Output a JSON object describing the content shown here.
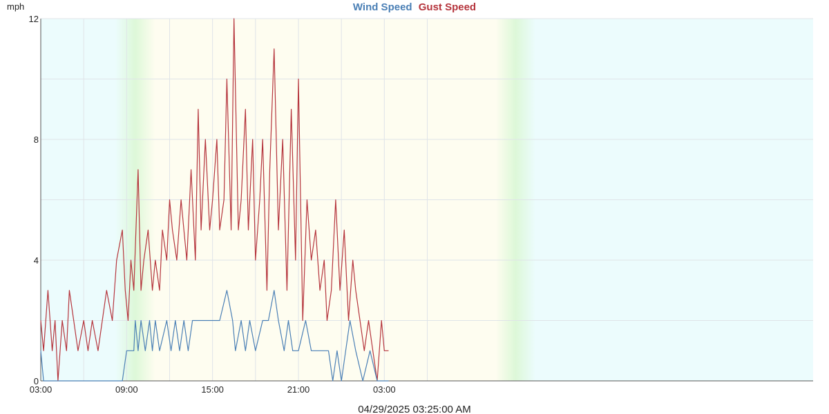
{
  "chart_data": {
    "type": "line",
    "y_unit": "mph",
    "ylim": [
      0,
      12
    ],
    "y_ticks": [
      "0",
      "4",
      "8",
      "12"
    ],
    "x_tick_labels": [
      "03:00",
      "09:00",
      "15:00",
      "21:00",
      "03:00"
    ],
    "x_range_hours": [
      3,
      30
    ],
    "grid": true,
    "legend_position": "top-center",
    "timestamp": "04/29/2025 03:25:00 AM",
    "colors": {
      "wind": "#4a7fb5",
      "gust": "#b5343c",
      "night": "#ecfcfd",
      "day": "#fefdf0",
      "twilight": "#ddf8d8"
    },
    "daylight": {
      "sunrise_hour": 6.3,
      "sunset_hour": 19.6
    },
    "series": [
      {
        "name": "Wind Speed",
        "x_hours": [
          3.0,
          3.2,
          8.7,
          9.0,
          9.5,
          9.6,
          9.8,
          10.0,
          10.3,
          10.6,
          10.8,
          11.0,
          11.3,
          11.8,
          12.1,
          12.4,
          12.7,
          13.0,
          13.3,
          13.6,
          14.0,
          14.5,
          15.0,
          15.5,
          16.0,
          16.4,
          16.6,
          17.0,
          17.3,
          17.6,
          18.0,
          18.5,
          18.9,
          19.3,
          19.6,
          20.0,
          20.3,
          20.6,
          21.0,
          21.5,
          21.9,
          22.5,
          23.1,
          23.4,
          23.7,
          24.0,
          24.3,
          24.6,
          25.0,
          25.5,
          26.0,
          26.5,
          27.0,
          27.3
        ],
        "values": [
          1,
          0,
          0,
          1,
          1,
          2,
          1,
          2,
          1,
          2,
          1,
          2,
          1,
          2,
          1,
          2,
          1,
          2,
          1,
          2,
          2,
          2,
          2,
          2,
          3,
          2,
          1,
          2,
          1,
          2,
          1,
          2,
          2,
          3,
          2,
          1,
          2,
          1,
          1,
          2,
          1,
          1,
          1,
          0,
          1,
          0,
          1,
          2,
          1,
          0,
          1,
          0,
          0,
          0
        ]
      },
      {
        "name": "Gust Speed",
        "x_hours": [
          3.0,
          3.2,
          3.5,
          3.8,
          4.0,
          4.2,
          4.5,
          4.8,
          5.0,
          5.3,
          5.6,
          6.0,
          6.3,
          6.6,
          7.0,
          7.3,
          7.6,
          8.0,
          8.3,
          8.7,
          8.9,
          9.1,
          9.3,
          9.5,
          9.8,
          10.0,
          10.2,
          10.5,
          10.8,
          11.0,
          11.3,
          11.5,
          11.8,
          12.0,
          12.2,
          12.5,
          12.8,
          13.0,
          13.2,
          13.5,
          13.8,
          14.0,
          14.2,
          14.5,
          14.8,
          15.0,
          15.3,
          15.5,
          15.8,
          16.0,
          16.3,
          16.5,
          16.8,
          17.0,
          17.3,
          17.5,
          17.8,
          18.0,
          18.3,
          18.5,
          18.8,
          19.0,
          19.3,
          19.6,
          19.9,
          20.2,
          20.5,
          20.8,
          21.0,
          21.3,
          21.6,
          21.9,
          22.2,
          22.5,
          22.8,
          23.0,
          23.3,
          23.6,
          23.9,
          24.2,
          24.5,
          24.8,
          25.0,
          25.3,
          25.6,
          25.9,
          26.2,
          26.5,
          26.8,
          27.0,
          27.3
        ],
        "values": [
          2,
          1,
          3,
          1,
          2,
          0,
          2,
          1,
          3,
          2,
          1,
          2,
          1,
          2,
          1,
          2,
          3,
          2,
          4,
          5,
          3,
          2,
          4,
          3,
          7,
          3,
          4,
          5,
          3,
          4,
          3,
          5,
          4,
          6,
          5,
          4,
          6,
          5,
          4,
          7,
          4,
          9,
          5,
          8,
          5,
          6,
          8,
          5,
          6,
          10,
          5,
          12,
          5,
          6,
          9,
          5,
          8,
          4,
          6,
          8,
          3,
          7,
          11,
          5,
          8,
          3,
          9,
          4,
          10,
          2,
          6,
          4,
          5,
          3,
          4,
          2,
          3,
          6,
          3,
          5,
          2,
          4,
          3,
          2,
          1,
          2,
          1,
          0,
          2,
          1,
          1
        ]
      }
    ]
  }
}
